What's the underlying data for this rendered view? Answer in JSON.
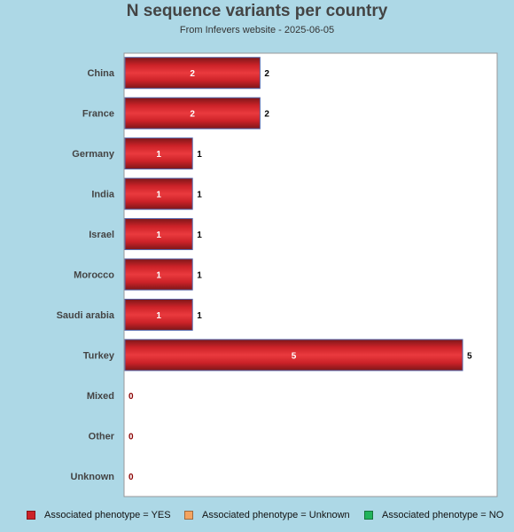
{
  "chart_data": {
    "type": "bar",
    "orientation": "horizontal",
    "title": "N sequence variants per country",
    "subtitle": "From Infevers website - 2025-06-05",
    "categories": [
      "China",
      "France",
      "Germany",
      "India",
      "Israel",
      "Morocco",
      "Saudi arabia",
      "Turkey",
      "Mixed",
      "Other",
      "Unknown"
    ],
    "series": [
      {
        "name": "Associated phenotype = YES",
        "color": "#cc2228",
        "values": [
          2,
          2,
          1,
          1,
          1,
          1,
          1,
          5,
          0,
          0,
          0
        ]
      },
      {
        "name": "Associated phenotype = Unknown",
        "color": "#f4a460",
        "values": [
          0,
          0,
          0,
          0,
          0,
          0,
          0,
          0,
          0,
          0,
          0
        ]
      },
      {
        "name": "Associated phenotype = NO",
        "color": "#22b35b",
        "values": [
          0,
          0,
          0,
          0,
          0,
          0,
          0,
          0,
          0,
          0,
          0
        ]
      }
    ],
    "totals": [
      "2",
      "2",
      "1",
      "1",
      "1",
      "1",
      "1",
      "5",
      "0",
      "0",
      "0"
    ],
    "xlim": [
      0,
      5.5
    ],
    "grid": false,
    "legend_position": "bottom"
  }
}
